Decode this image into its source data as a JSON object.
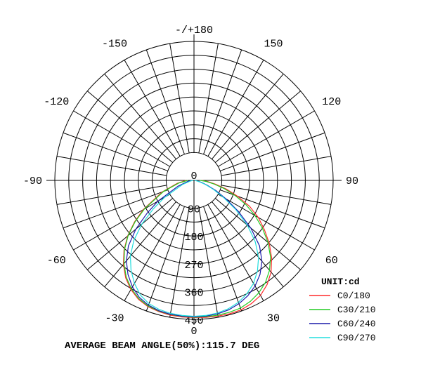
{
  "chart_data": {
    "type": "polar",
    "unit_label": "UNIT:cd",
    "footer": "AVERAGE BEAM ANGLE(50%):115.7 DEG",
    "angle_ticks": [
      {
        "angle": 180,
        "label": "-/+180"
      },
      {
        "angle": 150,
        "label": "150"
      },
      {
        "angle": -150,
        "label": "-150"
      },
      {
        "angle": 120,
        "label": "120"
      },
      {
        "angle": -120,
        "label": "-120"
      },
      {
        "angle": 90,
        "label": "90"
      },
      {
        "angle": -90,
        "label": "-90"
      },
      {
        "angle": 60,
        "label": "60"
      },
      {
        "angle": -60,
        "label": "-60"
      },
      {
        "angle": 30,
        "label": "30"
      },
      {
        "angle": -30,
        "label": "-30"
      },
      {
        "angle": 0,
        "label": "0"
      }
    ],
    "radial_ticks": [
      {
        "value": 0,
        "label": "0"
      },
      {
        "value": 90,
        "label": "90"
      },
      {
        "value": 180,
        "label": "180"
      },
      {
        "value": 270,
        "label": "270"
      },
      {
        "value": 360,
        "label": "360"
      },
      {
        "value": 450,
        "label": "450"
      }
    ],
    "radial_max": 450,
    "series": [
      {
        "name": "C0/180",
        "color": "#ff2a2a",
        "points": [
          [
            -90,
            25
          ],
          [
            -80,
            55
          ],
          [
            -70,
            110
          ],
          [
            -60,
            190
          ],
          [
            -55,
            235
          ],
          [
            -50,
            280
          ],
          [
            -45,
            320
          ],
          [
            -40,
            355
          ],
          [
            -35,
            385
          ],
          [
            -30,
            408
          ],
          [
            -25,
            425
          ],
          [
            -20,
            435
          ],
          [
            -15,
            440
          ],
          [
            -10,
            443
          ],
          [
            -5,
            444
          ],
          [
            0,
            444
          ],
          [
            5,
            445
          ],
          [
            10,
            446
          ],
          [
            15,
            447
          ],
          [
            20,
            446
          ],
          [
            25,
            440
          ],
          [
            30,
            430
          ],
          [
            35,
            412
          ],
          [
            40,
            388
          ],
          [
            45,
            355
          ],
          [
            50,
            318
          ],
          [
            55,
            278
          ],
          [
            60,
            240
          ],
          [
            65,
            198
          ],
          [
            70,
            150
          ],
          [
            75,
            108
          ],
          [
            80,
            70
          ],
          [
            85,
            45
          ],
          [
            90,
            25
          ]
        ]
      },
      {
        "name": "C30/210",
        "color": "#22cc22",
        "points": [
          [
            -90,
            20
          ],
          [
            -80,
            50
          ],
          [
            -70,
            105
          ],
          [
            -60,
            185
          ],
          [
            -55,
            232
          ],
          [
            -50,
            278
          ],
          [
            -45,
            318
          ],
          [
            -40,
            352
          ],
          [
            -35,
            382
          ],
          [
            -30,
            405
          ],
          [
            -25,
            422
          ],
          [
            -20,
            433
          ],
          [
            -15,
            438
          ],
          [
            -10,
            441
          ],
          [
            -5,
            442
          ],
          [
            0,
            443
          ],
          [
            5,
            443
          ],
          [
            10,
            443
          ],
          [
            15,
            442
          ],
          [
            20,
            440
          ],
          [
            25,
            432
          ],
          [
            30,
            420
          ],
          [
            35,
            403
          ],
          [
            40,
            380
          ],
          [
            45,
            350
          ],
          [
            50,
            312
          ],
          [
            55,
            270
          ],
          [
            60,
            228
          ],
          [
            65,
            185
          ],
          [
            70,
            140
          ],
          [
            75,
            100
          ],
          [
            80,
            65
          ],
          [
            85,
            40
          ],
          [
            90,
            20
          ]
        ]
      },
      {
        "name": "C60/240",
        "color": "#1a1aaa",
        "points": [
          [
            -90,
            5
          ],
          [
            -80,
            20
          ],
          [
            -70,
            55
          ],
          [
            -60,
            135
          ],
          [
            -55,
            185
          ],
          [
            -50,
            245
          ],
          [
            -45,
            300
          ],
          [
            -40,
            340
          ],
          [
            -35,
            372
          ],
          [
            -30,
            398
          ],
          [
            -25,
            418
          ],
          [
            -20,
            430
          ],
          [
            -15,
            437
          ],
          [
            -10,
            440
          ],
          [
            -5,
            441
          ],
          [
            0,
            442
          ],
          [
            5,
            441
          ],
          [
            10,
            439
          ],
          [
            15,
            434
          ],
          [
            20,
            425
          ],
          [
            25,
            412
          ],
          [
            30,
            395
          ],
          [
            35,
            372
          ],
          [
            40,
            342
          ],
          [
            45,
            300
          ],
          [
            50,
            240
          ],
          [
            55,
            175
          ],
          [
            60,
            120
          ],
          [
            65,
            78
          ],
          [
            70,
            45
          ],
          [
            75,
            25
          ],
          [
            80,
            12
          ],
          [
            85,
            5
          ],
          [
            90,
            3
          ]
        ]
      },
      {
        "name": "C90/270",
        "color": "#22dddd",
        "points": [
          [
            -90,
            3
          ],
          [
            -80,
            12
          ],
          [
            -70,
            40
          ],
          [
            -60,
            110
          ],
          [
            -55,
            160
          ],
          [
            -50,
            220
          ],
          [
            -45,
            275
          ],
          [
            -40,
            320
          ],
          [
            -35,
            355
          ],
          [
            -30,
            385
          ],
          [
            -25,
            410
          ],
          [
            -20,
            425
          ],
          [
            -15,
            433
          ],
          [
            -10,
            437
          ],
          [
            -5,
            439
          ],
          [
            0,
            440
          ],
          [
            5,
            439
          ],
          [
            10,
            436
          ],
          [
            15,
            430
          ],
          [
            20,
            420
          ],
          [
            25,
            405
          ],
          [
            30,
            385
          ],
          [
            35,
            358
          ],
          [
            40,
            325
          ],
          [
            45,
            280
          ],
          [
            50,
            225
          ],
          [
            55,
            165
          ],
          [
            60,
            110
          ],
          [
            65,
            70
          ],
          [
            70,
            40
          ],
          [
            75,
            20
          ],
          [
            80,
            10
          ],
          [
            85,
            4
          ],
          [
            90,
            2
          ]
        ]
      }
    ]
  }
}
